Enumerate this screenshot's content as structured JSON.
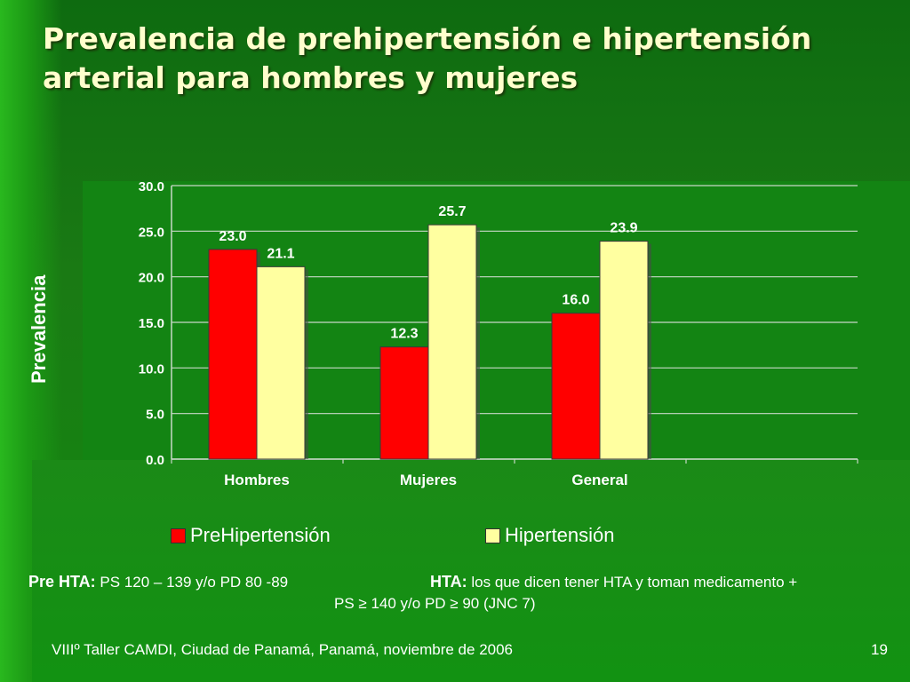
{
  "slide": {
    "title": "Prevalencia de prehipertensión e hipertensión arterial para hombres y mujeres",
    "footer": "VIIIº Taller CAMDI, Ciudad de Panamá, Panamá, noviembre de 2006",
    "page_number": "19"
  },
  "notes": {
    "pre_label": "Pre HTA:",
    "pre_text": "PS 120 – 139 y/o PD 80 -89",
    "hta_label": "HTA:",
    "hta_text": "los que dicen tener HTA y toman medicamento +",
    "hta_text2": "PS ≥ 140 y/o PD ≥ 90 (JNC 7)"
  },
  "chart_data": {
    "type": "bar",
    "title": "",
    "xlabel": "",
    "ylabel": "Prevalencia",
    "categories": [
      "Hombres",
      "Mujeres",
      "General"
    ],
    "series": [
      {
        "name": "PreHipertensión",
        "values": [
          23.0,
          12.3,
          16.0
        ],
        "color": "#ff0000"
      },
      {
        "name": "Hipertensión",
        "values": [
          21.1,
          25.7,
          23.9
        ],
        "color": "#ffffa0"
      }
    ],
    "ylim": [
      0,
      30
    ],
    "yticks": [
      "0.0",
      "5.0",
      "10.0",
      "15.0",
      "20.0",
      "25.0",
      "30.0"
    ],
    "grid": true,
    "legend": "bottom",
    "data_labels": true
  }
}
